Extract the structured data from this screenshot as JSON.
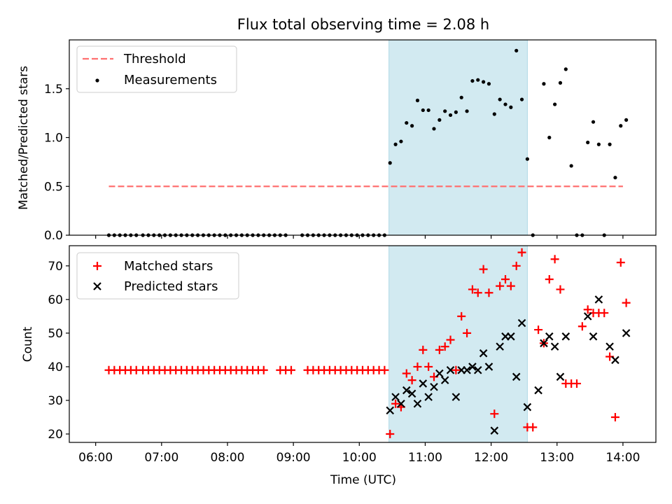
{
  "title": "Flux total observing time = 2.08 h",
  "colors": {
    "threshold": "#ff7070",
    "measurements": "#000000",
    "matched": "#ff0000",
    "predicted": "#000000",
    "shade": "#add8e6"
  },
  "chart_data": [
    {
      "type": "scatter",
      "ylabel": "Matched/Predicted stars",
      "ylim": [
        0,
        2.0
      ],
      "yticks": [
        "0.0",
        "0.5",
        "1.0",
        "1.5"
      ],
      "shaded_region": [
        "10:27",
        "12:33"
      ],
      "legend": {
        "placement": "top-left",
        "entries": [
          "Threshold",
          "Measurements"
        ]
      },
      "series": [
        {
          "name": "Threshold",
          "style": "dashed-line",
          "x": [
            "06:12",
            "14:00"
          ],
          "y": [
            0.5,
            0.5
          ]
        },
        {
          "name": "Measurements",
          "style": "dot",
          "x": [
            "06:12",
            "06:17",
            "06:22",
            "06:27",
            "06:32",
            "06:37",
            "06:43",
            "06:48",
            "06:53",
            "06:58",
            "07:03",
            "07:08",
            "07:13",
            "07:18",
            "07:23",
            "07:28",
            "07:33",
            "07:38",
            "07:43",
            "07:48",
            "07:53",
            "07:58",
            "08:03",
            "08:08",
            "08:13",
            "08:18",
            "08:23",
            "08:28",
            "08:33",
            "08:38",
            "08:43",
            "08:48",
            "08:53",
            "09:08",
            "09:13",
            "09:18",
            "09:23",
            "09:28",
            "09:33",
            "09:38",
            "09:43",
            "09:48",
            "09:53",
            "09:58",
            "10:03",
            "10:08",
            "10:13",
            "10:18",
            "10:23",
            "10:28",
            "10:33",
            "10:38",
            "10:43",
            "10:48",
            "10:53",
            "10:58",
            "11:03",
            "11:08",
            "11:13",
            "11:18",
            "11:23",
            "11:28",
            "11:33",
            "11:38",
            "11:43",
            "11:48",
            "11:53",
            "11:58",
            "12:03",
            "12:08",
            "12:13",
            "12:18",
            "12:23",
            "12:28",
            "12:33",
            "12:38",
            "12:48",
            "12:53",
            "12:58",
            "13:03",
            "13:08",
            "13:13",
            "13:18",
            "13:23",
            "13:28",
            "13:33",
            "13:38",
            "13:43",
            "13:48",
            "13:53",
            "13:58",
            "14:03"
          ],
          "y": [
            0,
            0,
            0,
            0,
            0,
            0,
            0,
            0,
            0,
            0,
            0,
            0,
            0,
            0,
            0,
            0,
            0,
            0,
            0,
            0,
            0,
            0,
            0,
            0,
            0,
            0,
            0,
            0,
            0,
            0,
            0,
            0,
            0,
            0,
            0,
            0,
            0,
            0,
            0,
            0,
            0,
            0,
            0,
            0,
            0,
            0,
            0,
            0,
            0,
            0.74,
            0.93,
            0.96,
            1.15,
            1.12,
            1.38,
            1.28,
            1.28,
            1.09,
            1.18,
            1.27,
            1.23,
            1.26,
            1.41,
            1.27,
            1.58,
            1.59,
            1.57,
            1.55,
            1.24,
            1.39,
            1.34,
            1.31,
            1.89,
            1.39,
            0.78,
            0,
            1.55,
            1.0,
            1.34,
            1.56,
            1.7,
            0.71,
            0,
            0,
            0.95,
            1.16,
            0.93,
            0,
            0.93,
            0.59,
            1.12,
            1.18
          ]
        }
      ]
    },
    {
      "type": "scatter",
      "xlabel": "Time (UTC)",
      "ylabel": "Count",
      "ylim": [
        17.5,
        76
      ],
      "yticks": [
        "20",
        "30",
        "40",
        "50",
        "60",
        "70"
      ],
      "xticks": [
        "06:00",
        "07:00",
        "08:00",
        "09:00",
        "10:00",
        "11:00",
        "12:00",
        "13:00",
        "14:00"
      ],
      "shaded_region": [
        "10:27",
        "12:33"
      ],
      "legend": {
        "placement": "top-left",
        "entries": [
          "Matched stars",
          "Predicted stars"
        ]
      },
      "series": [
        {
          "name": "Matched stars",
          "marker": "plus",
          "x": [
            "06:12",
            "06:17",
            "06:22",
            "06:27",
            "06:32",
            "06:37",
            "06:43",
            "06:48",
            "06:53",
            "06:58",
            "07:03",
            "07:08",
            "07:13",
            "07:18",
            "07:23",
            "07:28",
            "07:33",
            "07:38",
            "07:43",
            "07:48",
            "07:53",
            "07:58",
            "08:03",
            "08:08",
            "08:13",
            "08:18",
            "08:23",
            "08:28",
            "08:33",
            "08:48",
            "08:53",
            "08:58",
            "09:13",
            "09:18",
            "09:23",
            "09:28",
            "09:33",
            "09:38",
            "09:43",
            "09:48",
            "09:53",
            "09:58",
            "10:03",
            "10:08",
            "10:13",
            "10:18",
            "10:23",
            "10:28",
            "10:33",
            "10:38",
            "10:43",
            "10:48",
            "10:53",
            "10:58",
            "11:03",
            "11:08",
            "11:13",
            "11:18",
            "11:23",
            "11:28",
            "11:33",
            "11:38",
            "11:43",
            "11:48",
            "11:53",
            "11:58",
            "12:03",
            "12:08",
            "12:13",
            "12:18",
            "12:23",
            "12:28",
            "12:33",
            "12:38",
            "12:43",
            "12:48",
            "12:53",
            "12:58",
            "13:03",
            "13:08",
            "13:13",
            "13:18",
            "13:23",
            "13:28",
            "13:33",
            "13:38",
            "13:43",
            "13:48",
            "13:53",
            "13:58",
            "14:03"
          ],
          "y": [
            39,
            39,
            39,
            39,
            39,
            39,
            39,
            39,
            39,
            39,
            39,
            39,
            39,
            39,
            39,
            39,
            39,
            39,
            39,
            39,
            39,
            39,
            39,
            39,
            39,
            39,
            39,
            39,
            39,
            39,
            39,
            39,
            39,
            39,
            39,
            39,
            39,
            39,
            39,
            39,
            39,
            39,
            39,
            39,
            39,
            39,
            39,
            20,
            29,
            28,
            38,
            36,
            40,
            45,
            40,
            37,
            45,
            46,
            48,
            39,
            55,
            50,
            63,
            62,
            69,
            62,
            26,
            64,
            66,
            64,
            70,
            74,
            22,
            22,
            51,
            47,
            66,
            72,
            63,
            35,
            35,
            35,
            52,
            57,
            56,
            56,
            56,
            43,
            25,
            71,
            59
          ]
        },
        {
          "name": "Predicted stars",
          "marker": "x",
          "x": [
            "10:28",
            "10:33",
            "10:38",
            "10:43",
            "10:48",
            "10:53",
            "10:58",
            "11:03",
            "11:08",
            "11:13",
            "11:18",
            "11:23",
            "11:28",
            "11:33",
            "11:38",
            "11:43",
            "11:48",
            "11:53",
            "11:58",
            "12:03",
            "12:08",
            "12:13",
            "12:18",
            "12:23",
            "12:28",
            "12:33",
            "12:43",
            "12:48",
            "12:53",
            "12:58",
            "13:03",
            "13:08",
            "13:28",
            "13:33",
            "13:38",
            "13:48",
            "13:53",
            "14:03"
          ],
          "y": [
            27,
            31,
            29,
            33,
            32,
            29,
            35,
            31,
            34,
            38,
            36,
            39,
            31,
            39,
            39,
            40,
            39,
            44,
            40,
            21,
            46,
            49,
            49,
            37,
            53,
            28,
            33,
            47,
            49,
            46,
            37,
            49,
            55,
            49,
            60,
            46,
            42,
            50
          ]
        }
      ]
    }
  ]
}
